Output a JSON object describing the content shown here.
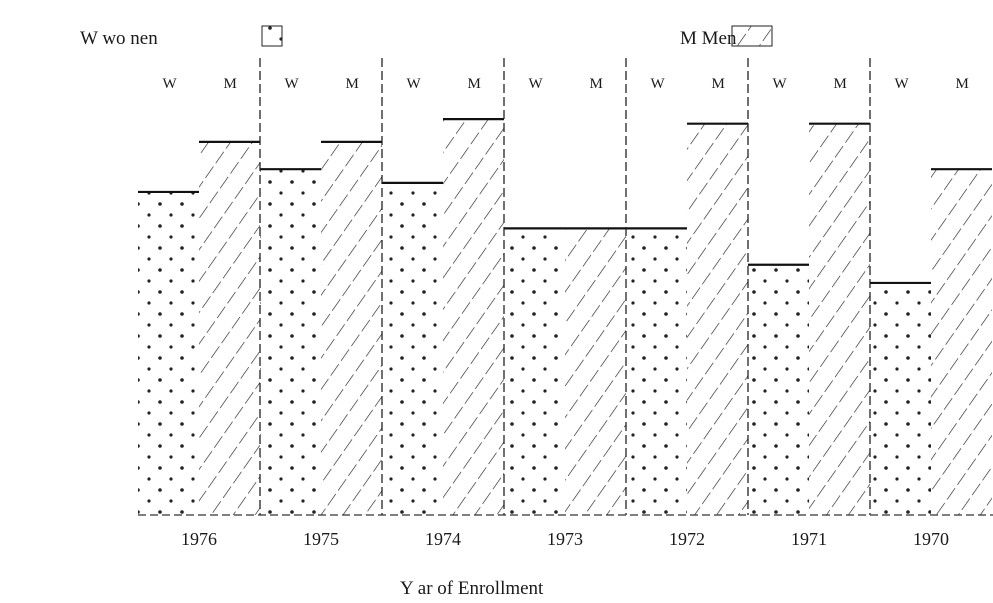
{
  "chart_data": {
    "type": "bar",
    "legend": {
      "position": "top",
      "entries": [
        {
          "label": "W wo nen",
          "pattern": "dots"
        },
        {
          "label": "M Men",
          "pattern": "hatch"
        }
      ]
    },
    "column_labels": [
      "W",
      "M"
    ],
    "categories": [
      "1976",
      "1975",
      "1974",
      "1973",
      "1972",
      "1971",
      "1970"
    ],
    "xlabel": "Y ar of Enrollment",
    "ylabel": "",
    "ylim": [
      0,
      100
    ],
    "grid": false,
    "series": [
      {
        "name": "W wo nen",
        "values": [
          71,
          76,
          73,
          63,
          63,
          55,
          51
        ]
      },
      {
        "name": "M Men",
        "values": [
          82,
          82,
          87,
          63,
          86,
          86,
          76
        ]
      }
    ]
  }
}
